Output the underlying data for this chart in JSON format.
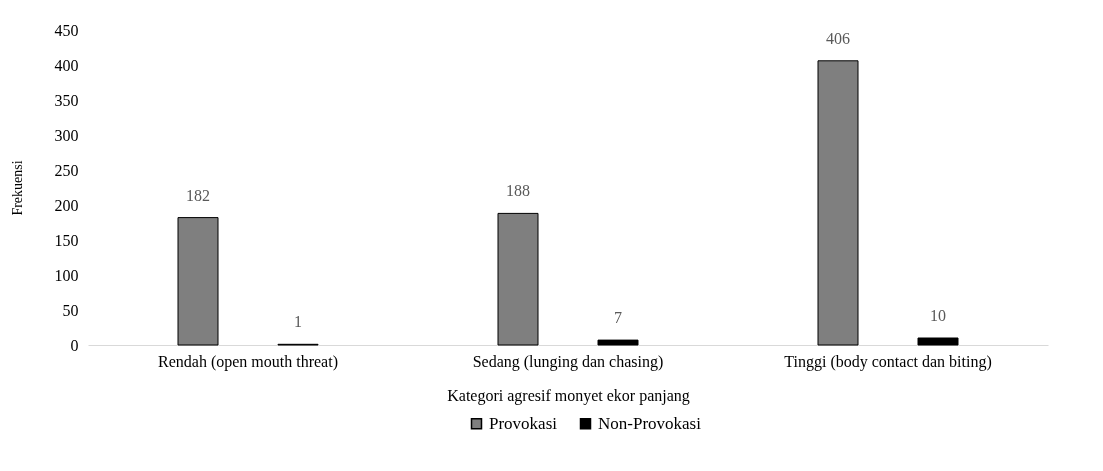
{
  "chart_data": {
    "type": "bar",
    "xlabel": "Kategori agresif monyet ekor panjang",
    "ylabel": "Frekuensi",
    "categories": [
      "Rendah (open mouth threat)",
      "Sedang (lunging dan chasing)",
      "Tinggi (body contact dan biting)"
    ],
    "series": [
      {
        "name": "Provokasi",
        "color": "#7f7f7f",
        "values": [
          182,
          188,
          406
        ]
      },
      {
        "name": "Non-Provokasi",
        "color": "#000000",
        "values": [
          1,
          7,
          10
        ]
      }
    ],
    "ylim": [
      0,
      450
    ],
    "yticks": [
      0,
      50,
      100,
      150,
      200,
      250,
      300,
      350,
      400,
      450
    ],
    "grid": false,
    "legend": "bottom",
    "data_labels": true
  }
}
